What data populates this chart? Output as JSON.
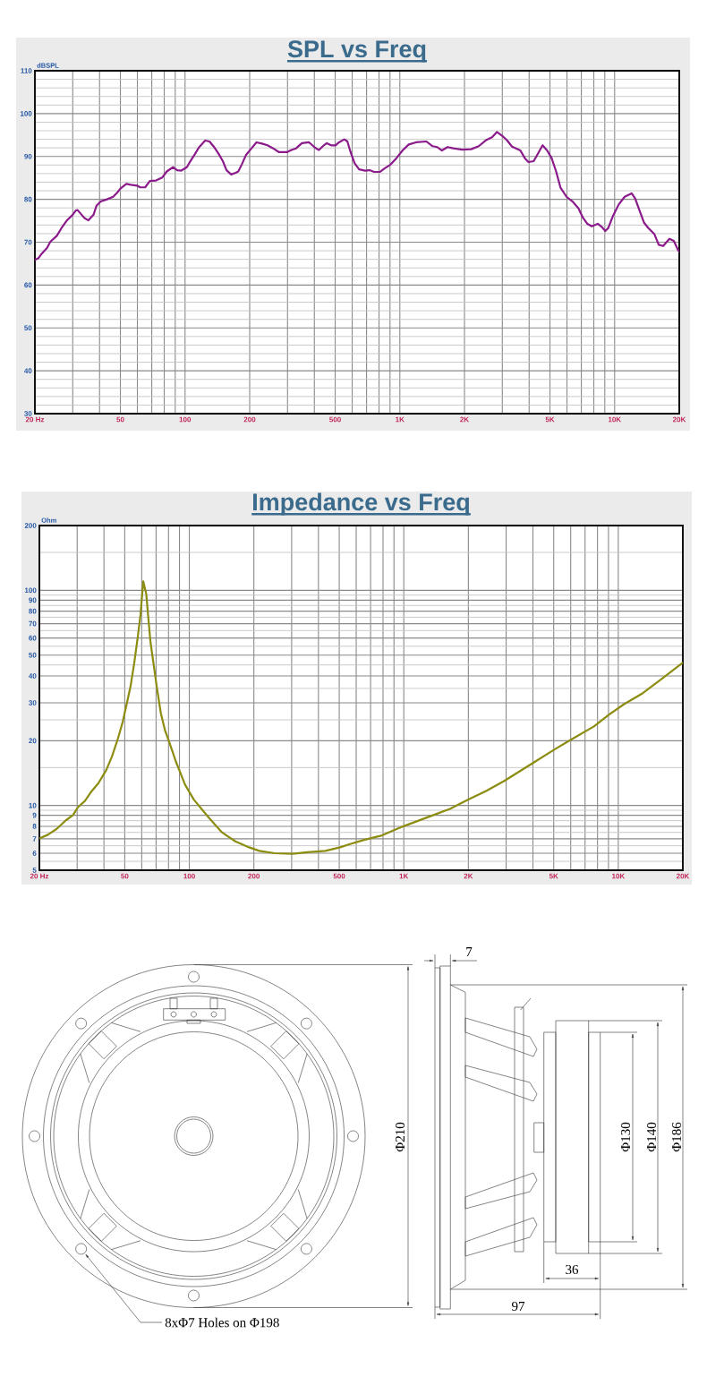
{
  "chart_data": [
    {
      "type": "line",
      "title": "SPL vs Freq",
      "ylabel": "dBSPL",
      "log": "x",
      "grid": true,
      "xlim": [
        20,
        20000
      ],
      "ylim": [
        30,
        110
      ],
      "xticks": [
        {
          "value": 20,
          "label": "20 Hz"
        },
        {
          "value": 30,
          "label": null
        },
        {
          "value": 40,
          "label": null
        },
        50,
        {
          "value": 60,
          "label": null
        },
        {
          "value": 70,
          "label": null
        },
        {
          "value": 80,
          "label": null
        },
        {
          "value": 90,
          "label": null
        },
        100,
        200,
        {
          "value": 300,
          "label": null
        },
        {
          "value": 400,
          "label": null
        },
        500,
        {
          "value": 600,
          "label": null
        },
        {
          "value": 700,
          "label": null
        },
        {
          "value": 800,
          "label": null
        },
        {
          "value": 900,
          "label": null
        },
        {
          "value": 1000,
          "label": "1K"
        },
        {
          "value": 2000,
          "label": "2K"
        },
        {
          "value": 3000,
          "label": null
        },
        {
          "value": 4000,
          "label": null
        },
        {
          "value": 5000,
          "label": "5K"
        },
        {
          "value": 6000,
          "label": null
        },
        {
          "value": 7000,
          "label": null
        },
        {
          "value": 8000,
          "label": null
        },
        {
          "value": 9000,
          "label": null
        },
        {
          "value": 10000,
          "label": "10K"
        },
        {
          "value": 20000,
          "label": "20K"
        }
      ],
      "yticks": [
        30,
        {
          "value": 32,
          "label": null
        },
        {
          "value": 34,
          "label": null
        },
        {
          "value": 36,
          "label": null
        },
        {
          "value": 38,
          "label": null
        },
        40,
        {
          "value": 42,
          "label": null
        },
        {
          "value": 44,
          "label": null
        },
        {
          "value": 46,
          "label": null
        },
        {
          "value": 48,
          "label": null
        },
        50,
        {
          "value": 52,
          "label": null
        },
        {
          "value": 54,
          "label": null
        },
        {
          "value": 56,
          "label": null
        },
        {
          "value": 58,
          "label": null
        },
        60,
        {
          "value": 62,
          "label": null
        },
        {
          "value": 64,
          "label": null
        },
        {
          "value": 66,
          "label": null
        },
        {
          "value": 68,
          "label": null
        },
        70,
        {
          "value": 72,
          "label": null
        },
        {
          "value": 74,
          "label": null
        },
        {
          "value": 76,
          "label": null
        },
        {
          "value": 78,
          "label": null
        },
        80,
        {
          "value": 82,
          "label": null
        },
        {
          "value": 84,
          "label": null
        },
        {
          "value": 86,
          "label": null
        },
        {
          "value": 88,
          "label": null
        },
        90,
        {
          "value": 92,
          "label": null
        },
        {
          "value": 94,
          "label": null
        },
        {
          "value": 96,
          "label": null
        },
        {
          "value": 98,
          "label": null
        },
        100,
        {
          "value": 102,
          "label": null
        },
        {
          "value": 104,
          "label": null
        },
        {
          "value": 106,
          "label": null
        },
        {
          "value": 108,
          "label": null
        },
        110
      ],
      "x": [
        20,
        20.8,
        21.5,
        22.8,
        23.6,
        25.3,
        26.6,
        28.1,
        30,
        31,
        31.6,
        33,
        34.1,
        35.5,
        37.5,
        38.7,
        40.5,
        43.3,
        46.3,
        48.4,
        50,
        53.3,
        55.9,
        59.8,
        61.8,
        65.2,
        68.6,
        73.3,
        78.4,
        82.2,
        87.9,
        91.9,
        96,
        102,
        105,
        111,
        116,
        124,
        130,
        136,
        143,
        150,
        156,
        164,
        172,
        177,
        184,
        192,
        204,
        215,
        228,
        242,
        257,
        274,
        298,
        313,
        329,
        350,
        378,
        402,
        420,
        443,
        457,
        479,
        502,
        521,
        552,
        570,
        590,
        616,
        646,
        689,
        723,
        759,
        809,
        849,
        905,
        964,
        1030,
        1100,
        1190,
        1330,
        1420,
        1490,
        1570,
        1670,
        1770,
        1950,
        2150,
        2330,
        2520,
        2690,
        2830,
        3000,
        3150,
        3330,
        3640,
        3820,
        3970,
        4200,
        4410,
        4620,
        4850,
        5090,
        5340,
        5600,
        5970,
        6370,
        6790,
        7120,
        7460,
        7830,
        8350,
        8700,
        9050,
        9340,
        9800,
        10450,
        11140,
        12000,
        12460,
        13060,
        13690,
        14360,
        15310,
        16050,
        16830,
        17990,
        18860,
        19810,
        20000
      ],
      "series": [
        {
          "color": "#8b1a8b",
          "values": [
            65.9,
            66.3,
            67.3,
            68.7,
            70.1,
            71.5,
            73.3,
            75.0,
            76.4,
            77.4,
            77.5,
            76.4,
            75.6,
            75.1,
            76.4,
            78.5,
            79.5,
            80.0,
            80.6,
            81.6,
            82.5,
            83.6,
            83.4,
            83.2,
            82.8,
            82.8,
            84.3,
            84.4,
            85.1,
            86.5,
            87.5,
            86.8,
            86.7,
            87.5,
            88.6,
            90.5,
            92.1,
            93.7,
            93.5,
            92.3,
            90.7,
            88.9,
            86.8,
            85.8,
            86.2,
            86.5,
            88.2,
            90.3,
            91.9,
            93.3,
            93.0,
            92.6,
            91.9,
            91.0,
            91.0,
            91.5,
            91.9,
            93.1,
            93.3,
            92.1,
            91.5,
            92.6,
            93.1,
            92.6,
            92.6,
            93.3,
            94.0,
            93.5,
            91.0,
            88.4,
            87.0,
            86.7,
            86.8,
            86.4,
            86.4,
            87.2,
            88.1,
            89.6,
            91.4,
            92.8,
            93.3,
            93.5,
            92.4,
            92.2,
            91.4,
            92.2,
            91.9,
            91.6,
            91.7,
            92.4,
            93.8,
            94.5,
            95.7,
            94.8,
            93.8,
            92.3,
            91.4,
            89.6,
            88.7,
            88.9,
            90.8,
            92.6,
            91.4,
            89.6,
            86.5,
            82.7,
            80.6,
            79.5,
            77.9,
            75.7,
            74.3,
            73.7,
            74.3,
            73.6,
            72.6,
            73.3,
            76.0,
            78.8,
            80.6,
            81.4,
            80.2,
            77.4,
            74.6,
            73.3,
            71.9,
            69.4,
            69.1,
            70.8,
            70.3,
            68.0,
            67.8
          ]
        }
      ]
    },
    {
      "type": "line",
      "title": "Impedance vs Freq",
      "ylabel": "Ohm",
      "log": "xy",
      "grid": true,
      "xlim": [
        20,
        20000
      ],
      "ylim": [
        5,
        200
      ],
      "xticks": [
        {
          "value": 20,
          "label": "20 Hz"
        },
        {
          "value": 30,
          "label": null
        },
        {
          "value": 40,
          "label": null
        },
        50,
        {
          "value": 60,
          "label": null
        },
        {
          "value": 70,
          "label": null
        },
        {
          "value": 80,
          "label": null
        },
        {
          "value": 90,
          "label": null
        },
        100,
        200,
        {
          "value": 300,
          "label": null
        },
        {
          "value": 400,
          "label": null
        },
        500,
        {
          "value": 600,
          "label": null
        },
        {
          "value": 700,
          "label": null
        },
        {
          "value": 800,
          "label": null
        },
        {
          "value": 900,
          "label": null
        },
        {
          "value": 1000,
          "label": "1K"
        },
        {
          "value": 2000,
          "label": "2K"
        },
        {
          "value": 3000,
          "label": null
        },
        {
          "value": 4000,
          "label": null
        },
        {
          "value": 5000,
          "label": "5K"
        },
        {
          "value": 6000,
          "label": null
        },
        {
          "value": 7000,
          "label": null
        },
        {
          "value": 8000,
          "label": null
        },
        {
          "value": 9000,
          "label": null
        },
        {
          "value": 10000,
          "label": "10K"
        },
        {
          "value": 20000,
          "label": "20K"
        }
      ],
      "yticks": [
        5,
        {
          "value": 5.5,
          "label": null
        },
        6,
        {
          "value": 6.5,
          "label": null
        },
        7,
        {
          "value": 7.5,
          "label": null
        },
        8,
        {
          "value": 8.5,
          "label": null
        },
        9,
        {
          "value": 9.5,
          "label": null
        },
        10,
        {
          "value": 15,
          "label": null
        },
        20,
        {
          "value": 25,
          "label": null
        },
        30,
        {
          "value": 35,
          "label": null
        },
        40,
        {
          "value": 45,
          "label": null
        },
        50,
        {
          "value": 55,
          "label": null
        },
        60,
        {
          "value": 65,
          "label": null
        },
        70,
        {
          "value": 75,
          "label": null
        },
        80,
        {
          "value": 85,
          "label": null
        },
        90,
        {
          "value": 95,
          "label": null
        },
        100,
        {
          "value": 150,
          "label": null
        },
        200
      ],
      "x": [
        20,
        21.9,
        24.1,
        26.5,
        28.7,
        30.3,
        32.6,
        34.7,
        37.7,
        41,
        43.6,
        46.5,
        48.9,
        51.2,
        53.2,
        55.4,
        57.6,
        59.2,
        61,
        63,
        64.4,
        65.9,
        68.3,
        70.5,
        73.7,
        77.2,
        80.1,
        86.8,
        95.5,
        105,
        123,
        142,
        164,
        190,
        212,
        250,
        303,
        355,
        431,
        505,
        557,
        653,
        791,
        991,
        1280,
        1650,
        2000,
        2430,
        2940,
        4060,
        5080,
        5960,
        7700,
        9030,
        10600,
        12850,
        15570,
        20000
      ],
      "series": [
        {
          "color": "#8c8c10",
          "values": [
            7.03,
            7.31,
            7.79,
            8.51,
            9.02,
            9.83,
            10.5,
            11.5,
            12.7,
            14.6,
            16.9,
            20.5,
            24.4,
            30,
            35.7,
            46.1,
            61.5,
            76.8,
            110,
            96,
            74.5,
            57.7,
            44.7,
            35.7,
            26.8,
            22.2,
            20.1,
            15.9,
            12.5,
            10.65,
            8.8,
            7.5,
            6.81,
            6.39,
            6.15,
            6.0,
            5.96,
            6.06,
            6.15,
            6.39,
            6.6,
            6.92,
            7.26,
            7.99,
            8.79,
            9.67,
            10.65,
            11.7,
            13.0,
            15.9,
            18.3,
            20.1,
            23.3,
            26.4,
            29.5,
            33,
            38.1,
            46.1
          ]
        }
      ]
    },
    {
      "type": "other",
      "annotations": [
        "Φ210",
        "8xΦ7 Holes on Φ198",
        "7",
        "Φ130",
        "Φ140",
        "Φ186",
        "36",
        "97"
      ]
    }
  ]
}
